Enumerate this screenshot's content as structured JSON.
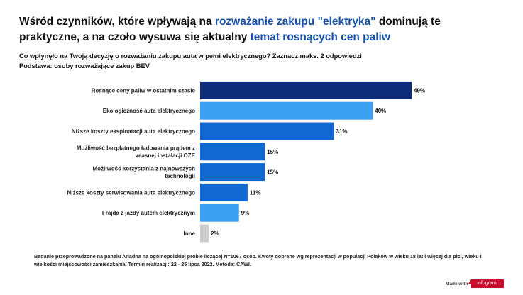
{
  "title": {
    "part1": "Wśród czynników, które wpływają na ",
    "highlight1": "rozważanie zakupu \"elektryka\"",
    "part2": " dominują te praktyczne, a na czoło wysuwa się aktualny ",
    "highlight2": "temat rosnących cen paliw"
  },
  "subtitle": {
    "question": "Co wpłynęło na Twoją decyzję o rozważaniu zakupu auta w pełni elektrycznego? Zaznacz maks. 2 odpowiedzi",
    "base": "Podstawa: osoby rozważające zakup BEV"
  },
  "chart_data": {
    "type": "bar",
    "orientation": "horizontal",
    "categories": [
      "Rosnące ceny paliw w ostatnim czasie",
      "Ekologiczność auta elektrycznego",
      "Niższe koszty eksploatacji auta elektrycznego",
      "Możliwość bezpłatnego ładowania prądem z własnej instalacji OZE",
      "Możliwość korzystania z najnowszych technologii",
      "Niższe koszty serwisowania auta elektrycznego",
      "Frajda z jazdy autem elektrycznym",
      "Inne"
    ],
    "values": [
      49,
      40,
      31,
      15,
      15,
      11,
      9,
      2
    ],
    "value_labels": [
      "49%",
      "40%",
      "31%",
      "15%",
      "15%",
      "11%",
      "9%",
      "2%"
    ],
    "colors": [
      "#0f2c78",
      "#3ca0f3",
      "#1268d2",
      "#1268d2",
      "#1268d2",
      "#1268d2",
      "#3ca0f3",
      "#cccccc"
    ],
    "xlim": [
      0,
      49
    ],
    "grid": false
  },
  "footer": {
    "note": "Badanie przeprowadzone na panelu Ariadna na ogólnopolskiej próbie liczącej N=1067 osób. Kwoty dobrane wg reprezentacji w populacji Polaków w wieku 18 lat i więcej dla płci, wieku i wielkości miejscowości zamieszkania. Termin realizacji:  22 - 25 lipca 2022. Metoda: CAWI.",
    "made_with": "Made with",
    "brand": "infogram"
  }
}
